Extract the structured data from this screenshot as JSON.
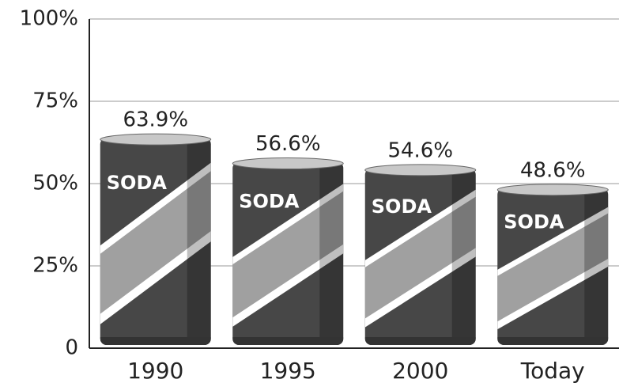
{
  "chart_data": {
    "type": "bar",
    "categories": [
      "1990",
      "1995",
      "2000",
      "Today"
    ],
    "values": [
      63.9,
      56.6,
      54.6,
      48.6
    ],
    "value_labels": [
      "63.9%",
      "56.6%",
      "54.6%",
      "48.6%"
    ],
    "can_label": "SODA",
    "color": "#474747",
    "ylim": [
      0,
      100
    ],
    "yticks": [
      0,
      {
        "value": 25,
        "label": "25%"
      },
      {
        "value": 50,
        "label": "50%"
      },
      {
        "value": 75,
        "label": "75%"
      },
      {
        "value": 100,
        "label": "100%"
      }
    ],
    "grid": true
  }
}
